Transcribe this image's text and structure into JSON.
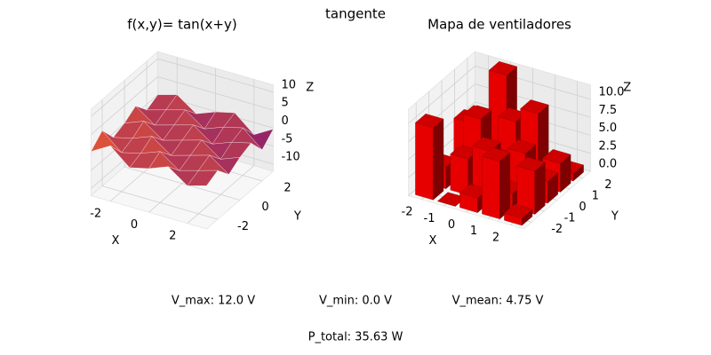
{
  "figure": {
    "title": "tangente",
    "annotations": [
      "V_max: 12.0 V",
      "V_min: 0.0 V",
      "V_mean: 4.75 V",
      "P_total: 35.63 W"
    ]
  },
  "chart_data": [
    {
      "type": "surface",
      "title": "f(x,y)= tan(x+y)",
      "xlabel": "X",
      "ylabel": "Y",
      "zlabel": "Z",
      "colormap": "inferno",
      "x": [
        -3,
        -2,
        -1,
        0,
        1,
        2,
        3
      ],
      "y": [
        -3,
        -2,
        -1,
        0,
        1,
        2,
        3
      ],
      "values": [
        [
          0.29,
          3.38,
          -1.16,
          0.14,
          2.19,
          -1.56,
          0
        ],
        [
          3.38,
          -1.16,
          0.14,
          2.19,
          -1.56,
          0,
          1.56
        ],
        [
          -1.16,
          0.14,
          2.19,
          -1.56,
          0,
          1.56,
          -2.19
        ],
        [
          0.14,
          2.19,
          -1.56,
          0,
          1.56,
          -2.19,
          -0.14
        ],
        [
          2.19,
          -1.56,
          0,
          1.56,
          -2.19,
          -0.14,
          1.16
        ],
        [
          -1.56,
          0,
          1.56,
          -2.19,
          -0.14,
          1.16,
          -3.38
        ],
        [
          0,
          1.56,
          -2.19,
          -0.14,
          1.16,
          -3.38,
          -0.29
        ]
      ],
      "xlim": [
        -3,
        3
      ],
      "ylim": [
        -3,
        3
      ],
      "zlim": [
        -12,
        12
      ],
      "xticks": [
        -2,
        0,
        2
      ],
      "yticks": [
        -2,
        0,
        2
      ],
      "zticks": [
        -10,
        -5,
        0,
        5,
        10
      ]
    },
    {
      "type": "bar3d",
      "title": "Mapa de ventiladores",
      "xlabel": "X",
      "ylabel": "Y",
      "zlabel": "Z",
      "color": "#e60000",
      "x": [
        -2,
        -1,
        0,
        1,
        2
      ],
      "y": [
        -2,
        -1,
        0,
        1,
        2
      ],
      "values": [
        [
          10,
          0,
          2,
          8,
          1
        ],
        [
          3,
          5,
          7,
          2,
          6
        ],
        [
          1,
          9,
          4,
          6,
          3
        ],
        [
          6,
          2,
          8,
          10,
          4
        ],
        [
          5,
          12,
          3,
          0.75,
          1
        ]
      ],
      "xlim": [
        -2.6,
        2.6
      ],
      "ylim": [
        -2.6,
        2.6
      ],
      "zlim": [
        0,
        12
      ],
      "xticks": [
        -2,
        -1,
        0,
        1,
        2
      ],
      "yticks": [
        -2,
        -1,
        0,
        1,
        2
      ],
      "zticks": [
        {
          "value": 0,
          "label": "0.0"
        },
        {
          "value": 2.5,
          "label": "2.5"
        },
        {
          "value": 5,
          "label": "5.0"
        },
        {
          "value": 7.5,
          "label": "7.5"
        },
        {
          "value": 10,
          "label": "10.0"
        }
      ]
    }
  ]
}
